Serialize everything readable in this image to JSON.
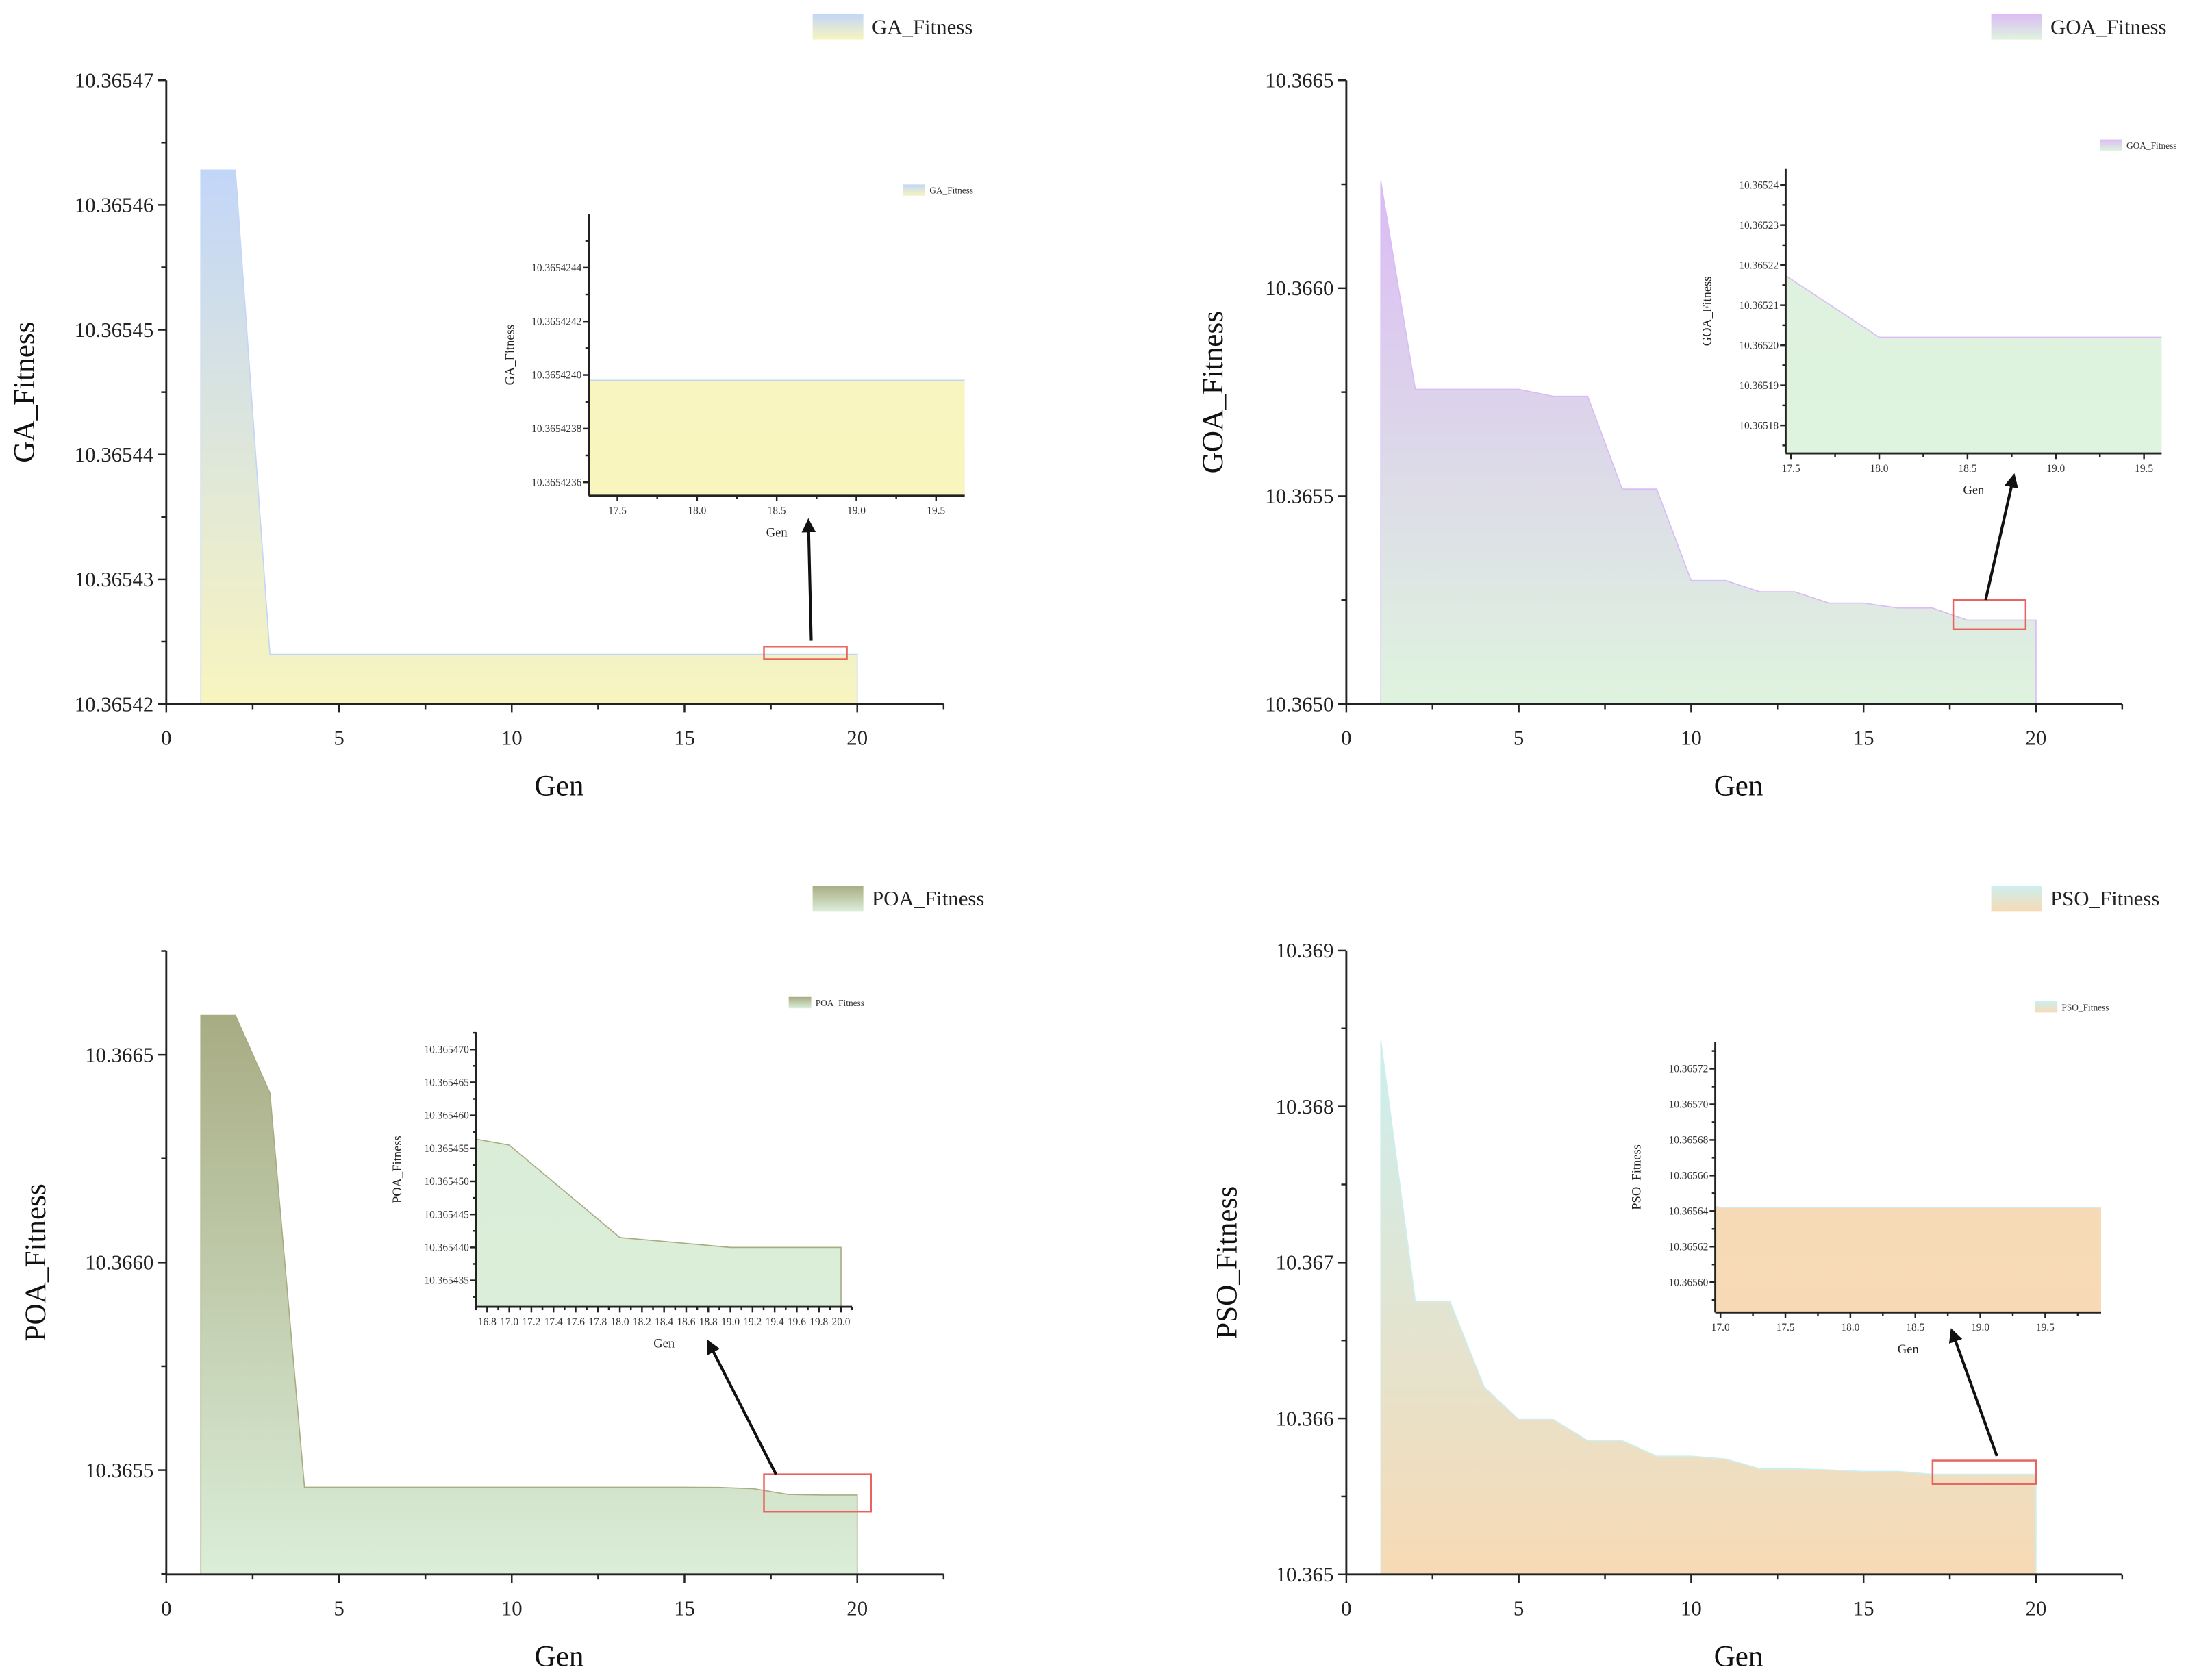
{
  "chart_data": [
    {
      "type": "area",
      "legend": "GA_Fitness",
      "xlabel": "Gen",
      "ylabel": "GA_Fitness",
      "xlim": [
        0,
        22.5
      ],
      "ylim": [
        10.36542,
        10.36547
      ],
      "xticks": [
        "0",
        "5",
        "10",
        "15",
        "20"
      ],
      "yticks": [
        "10.36542",
        "10.36543",
        "10.36544",
        "10.36545",
        "10.36546",
        "10.36547"
      ],
      "colors": {
        "top": "#c2d6f8",
        "bottom": "#f8f5bf"
      },
      "x": [
        1,
        2,
        3,
        4,
        5,
        6,
        7,
        8,
        9,
        10,
        11,
        12,
        13,
        14,
        15,
        16,
        17,
        18,
        19,
        20
      ],
      "y": [
        10.3654628,
        10.3654628,
        10.36542398,
        10.36542398,
        10.36542398,
        10.36542398,
        10.36542398,
        10.36542398,
        10.36542398,
        10.36542398,
        10.36542398,
        10.36542398,
        10.36542398,
        10.36542398,
        10.36542398,
        10.36542398,
        10.36542398,
        10.36542398,
        10.36542398,
        10.36542398
      ],
      "zoom_region": {
        "x": [
          17.3,
          19.7
        ],
        "y": [
          10.3654236,
          10.3654246
        ]
      },
      "inset": {
        "legend": "GA_Fitness",
        "xlabel": "Gen",
        "ylabel": "GA_Fitness",
        "xlim": [
          17.32,
          19.68
        ],
        "ylim": [
          10.36542355,
          10.3654246
        ],
        "xticks": [
          "17.5",
          "18.0",
          "18.5",
          "19.0",
          "19.5"
        ],
        "yticks": [
          "10.3654236",
          "10.3654238",
          "10.3654240",
          "10.3654242",
          "10.3654244"
        ]
      }
    },
    {
      "type": "area",
      "legend": "GOA_Fitness",
      "xlabel": "Gen",
      "ylabel": "GOA_Fitness",
      "xlim": [
        0,
        22.5
      ],
      "ylim": [
        10.365,
        10.3665
      ],
      "xticks": [
        "0",
        "5",
        "10",
        "15",
        "20"
      ],
      "yticks": [
        "10.3650",
        "10.3655",
        "10.3660",
        "10.3665"
      ],
      "colors": {
        "top": "#dbbbf5",
        "bottom": "#def4de"
      },
      "x": [
        1,
        2,
        3,
        4,
        5,
        6,
        7,
        8,
        9,
        10,
        11,
        12,
        13,
        14,
        15,
        16,
        17,
        18,
        19,
        20
      ],
      "y": [
        10.366257,
        10.365757,
        10.365757,
        10.365757,
        10.365757,
        10.36574,
        10.36574,
        10.365517,
        10.365517,
        10.365297,
        10.365297,
        10.36527,
        10.36527,
        10.365243,
        10.365243,
        10.365231,
        10.365231,
        10.365202,
        10.365202,
        10.365202
      ],
      "zoom_region": {
        "x": [
          17.6,
          19.7
        ],
        "y": [
          10.36518,
          10.36525
        ]
      },
      "inset": {
        "legend": "GOA_Fitness",
        "xlabel": "Gen",
        "ylabel": "GOA_Fitness",
        "xlim": [
          17.47,
          19.6
        ],
        "ylim": [
          10.365173,
          10.365244
        ],
        "xticks": [
          "17.5",
          "18.0",
          "18.5",
          "19.0",
          "19.5"
        ],
        "yticks": [
          "10.36518",
          "10.36519",
          "10.36520",
          "10.36521",
          "10.36522",
          "10.36523",
          "10.36524"
        ]
      }
    },
    {
      "type": "area",
      "legend": "POA_Fitness",
      "xlabel": "Gen",
      "ylabel": "POA_Fitness",
      "xlim": [
        0,
        22.5
      ],
      "ylim": [
        10.365249,
        10.366751
      ],
      "xticks": [
        "0",
        "5",
        "10",
        "15",
        "20"
      ],
      "yticks": [
        "10.3655",
        "10.3660",
        "10.3665"
      ],
      "colors": {
        "top": "#a8ac83",
        "bottom": "#dbeed9"
      },
      "x": [
        1,
        2,
        3,
        4,
        5,
        6,
        7,
        8,
        9,
        10,
        11,
        12,
        13,
        14,
        15,
        16,
        17,
        18,
        19,
        20
      ],
      "y": [
        10.366595,
        10.366595,
        10.366408,
        10.365459,
        10.365459,
        10.365459,
        10.365459,
        10.365459,
        10.365459,
        10.365459,
        10.365459,
        10.365459,
        10.365459,
        10.365459,
        10.365459,
        10.3654585,
        10.3654555,
        10.3654415,
        10.36544,
        10.36544
      ],
      "zoom_region": {
        "x": [
          17.3,
          20.4
        ],
        "y": [
          10.3654,
          10.36549
        ]
      },
      "inset": {
        "legend": "POA_Fitness",
        "xlabel": "Gen",
        "ylabel": "POA_Fitness",
        "xlim": [
          16.7,
          20.1
        ],
        "ylim": [
          10.365431,
          10.3654726
        ],
        "xticks": [
          "16.8",
          "17.0",
          "17.2",
          "17.4",
          "17.6",
          "17.8",
          "18.0",
          "18.2",
          "18.4",
          "18.6",
          "18.8",
          "19.0",
          "19.2",
          "19.4",
          "19.6",
          "19.8",
          "20.0"
        ],
        "yticks": [
          "10.365435",
          "10.365440",
          "10.365445",
          "10.365450",
          "10.365455",
          "10.365460",
          "10.365465",
          "10.365470"
        ]
      }
    },
    {
      "type": "area",
      "legend": "PSO_Fitness",
      "xlabel": "Gen",
      "ylabel": "PSO_Fitness",
      "xlim": [
        0,
        22.5
      ],
      "ylim": [
        10.365,
        10.369
      ],
      "xticks": [
        "0",
        "5",
        "10",
        "15",
        "20"
      ],
      "yticks": [
        "10.365",
        "10.366",
        "10.367",
        "10.368",
        "10.369"
      ],
      "colors": {
        "top": "#ccefef",
        "bottom": "#f7dab5"
      },
      "x": [
        1,
        2,
        3,
        4,
        5,
        6,
        7,
        8,
        9,
        10,
        11,
        12,
        13,
        14,
        15,
        16,
        17,
        18,
        19,
        20
      ],
      "y": [
        10.368422,
        10.366752,
        10.366752,
        10.366201,
        10.365993,
        10.365993,
        10.365858,
        10.365858,
        10.365758,
        10.365758,
        10.36574,
        10.365677,
        10.365677,
        10.36567,
        10.36566,
        10.36566,
        10.365642,
        10.365642,
        10.365642,
        10.365642
      ],
      "zoom_region": {
        "x": [
          17.0,
          20.0
        ],
        "y": [
          10.36558,
          10.36573
        ]
      },
      "inset": {
        "legend": "PSO_Fitness",
        "xlabel": "Gen",
        "ylabel": "PSO_Fitness",
        "xlim": [
          16.96,
          19.93
        ],
        "ylim": [
          10.365583,
          10.365735
        ],
        "xticks": [
          "17.0",
          "17.5",
          "18.0",
          "18.5",
          "19.0",
          "19.5"
        ],
        "yticks": [
          "10.36560",
          "10.36562",
          "10.36564",
          "10.36566",
          "10.36568",
          "10.36570",
          "10.36572"
        ]
      }
    }
  ]
}
